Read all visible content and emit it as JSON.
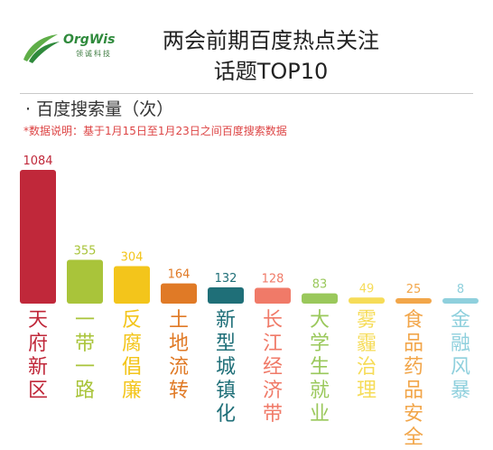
{
  "logo": {
    "name": "OrgWis",
    "subtitle": "领诚科技"
  },
  "title_lines": [
    "两会前期百度热点关注",
    "话题TOP10"
  ],
  "metric_label": "· 百度搜索量（次）",
  "note": "*数据说明：基于1月15日至1月23日之间百度搜索数据",
  "colors": {
    "title": "#222222",
    "note": "#dd4444",
    "logo": "#2f8a3c"
  },
  "chart_data": {
    "type": "bar",
    "title": "两会前期百度热点关注话题TOP10",
    "ylabel": "百度搜索量（次）",
    "ylim": [
      0,
      1084
    ],
    "categories": [
      "天府新区",
      "一带一路",
      "反腐倡廉",
      "土地流转",
      "新型城镇化",
      "长江经济带",
      "大学生就业",
      "雾霾治理",
      "食品药品安全",
      "金融风暴"
    ],
    "values": [
      1084,
      355,
      304,
      164,
      132,
      128,
      83,
      49,
      25,
      8
    ],
    "colors": [
      "#c0283a",
      "#a9c43a",
      "#f3c51b",
      "#e07a26",
      "#1f6f78",
      "#f07a68",
      "#9ac85b",
      "#f6dc58",
      "#f2a64a",
      "#8fd0dd"
    ]
  }
}
